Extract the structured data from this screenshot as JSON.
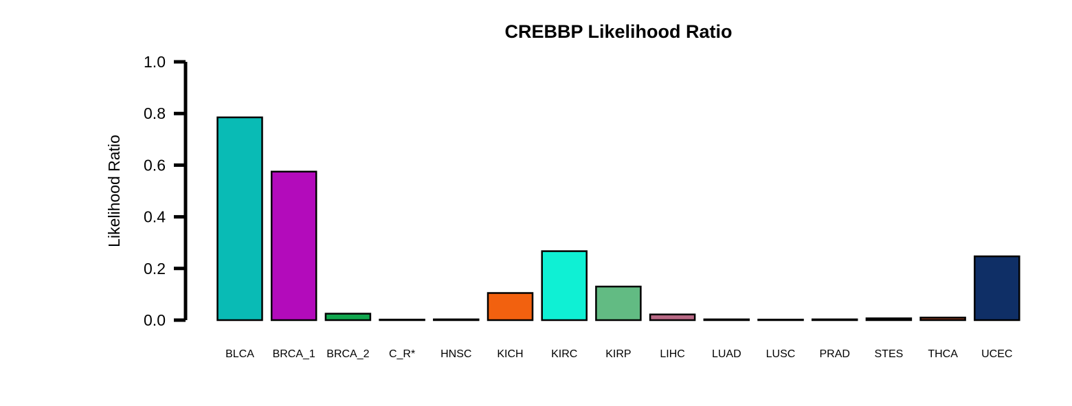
{
  "chart_data": {
    "type": "bar",
    "title": "CREBBP Likelihood Ratio",
    "xlabel": "",
    "ylabel": "Likelihood Ratio",
    "ylim": [
      0,
      1.0
    ],
    "yticks": [
      "0.0",
      "0.2",
      "0.4",
      "0.6",
      "0.8",
      "1.0"
    ],
    "categories": [
      "BLCA",
      "BRCA_1",
      "BRCA_2",
      "C_R*",
      "HNSC",
      "KICH",
      "KIRC",
      "KIRP",
      "LIHC",
      "LUAD",
      "LUSC",
      "PRAD",
      "STES",
      "THCA",
      "UCEC"
    ],
    "values": [
      0.785,
      0.575,
      0.025,
      0.0,
      0.003,
      0.105,
      0.267,
      0.13,
      0.022,
      0.003,
      0.001,
      0.003,
      0.007,
      0.01,
      0.247
    ],
    "colors": [
      "#09bbb5",
      "#b30bbb",
      "#12a74f",
      "#333333",
      "#222222",
      "#f2610f",
      "#0ff0d4",
      "#62bb83",
      "#b86985",
      "#222222",
      "#222222",
      "#222222",
      "#333333",
      "#8a3a1f",
      "#0f2f66"
    ],
    "grid": false,
    "legend": "none"
  }
}
